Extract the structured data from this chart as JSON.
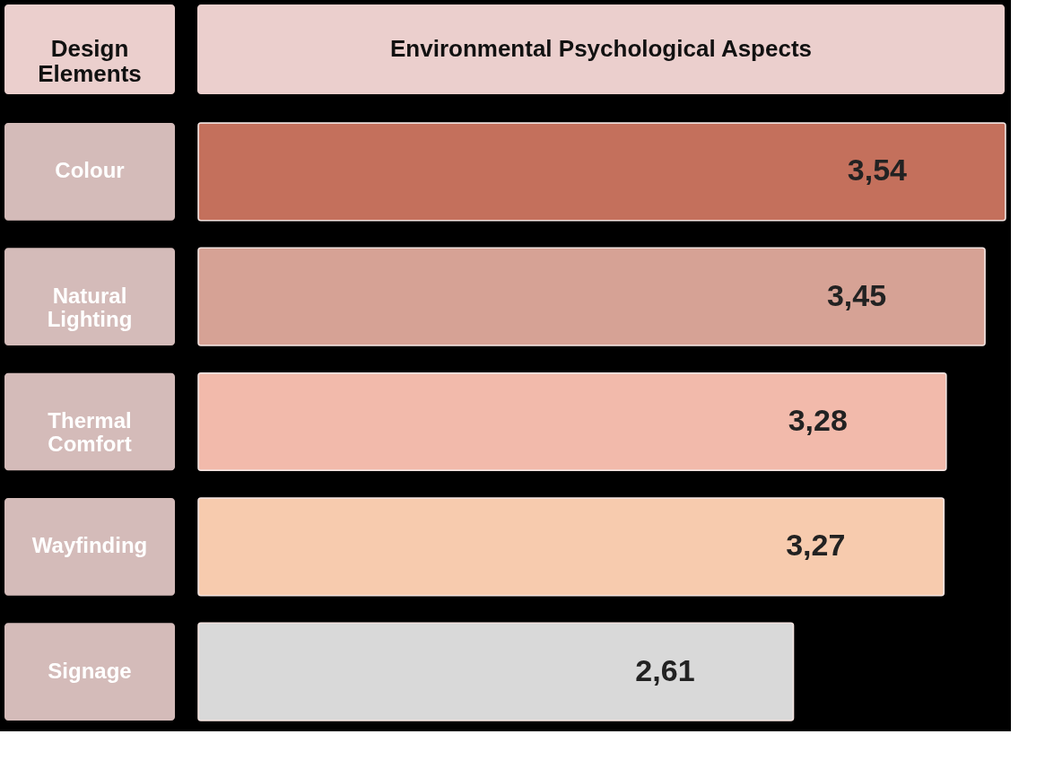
{
  "chart_data": {
    "type": "bar",
    "orientation": "horizontal",
    "ylabel": "Design Elements",
    "xlabel": "Environmental Psychological Aspects",
    "categories": [
      "Colour",
      "Natural Lighting",
      "Thermal Comfort",
      "Wayfinding",
      "Signage"
    ],
    "values": [
      3.54,
      3.45,
      3.28,
      3.27,
      2.61
    ],
    "colors": [
      "#c4705c",
      "#d6a295",
      "#f2baab",
      "#f7cbae",
      "#d9d9d9"
    ],
    "value_labels": [
      "3,54",
      "3,45",
      "3,28",
      "3,27",
      "2,61"
    ]
  }
}
